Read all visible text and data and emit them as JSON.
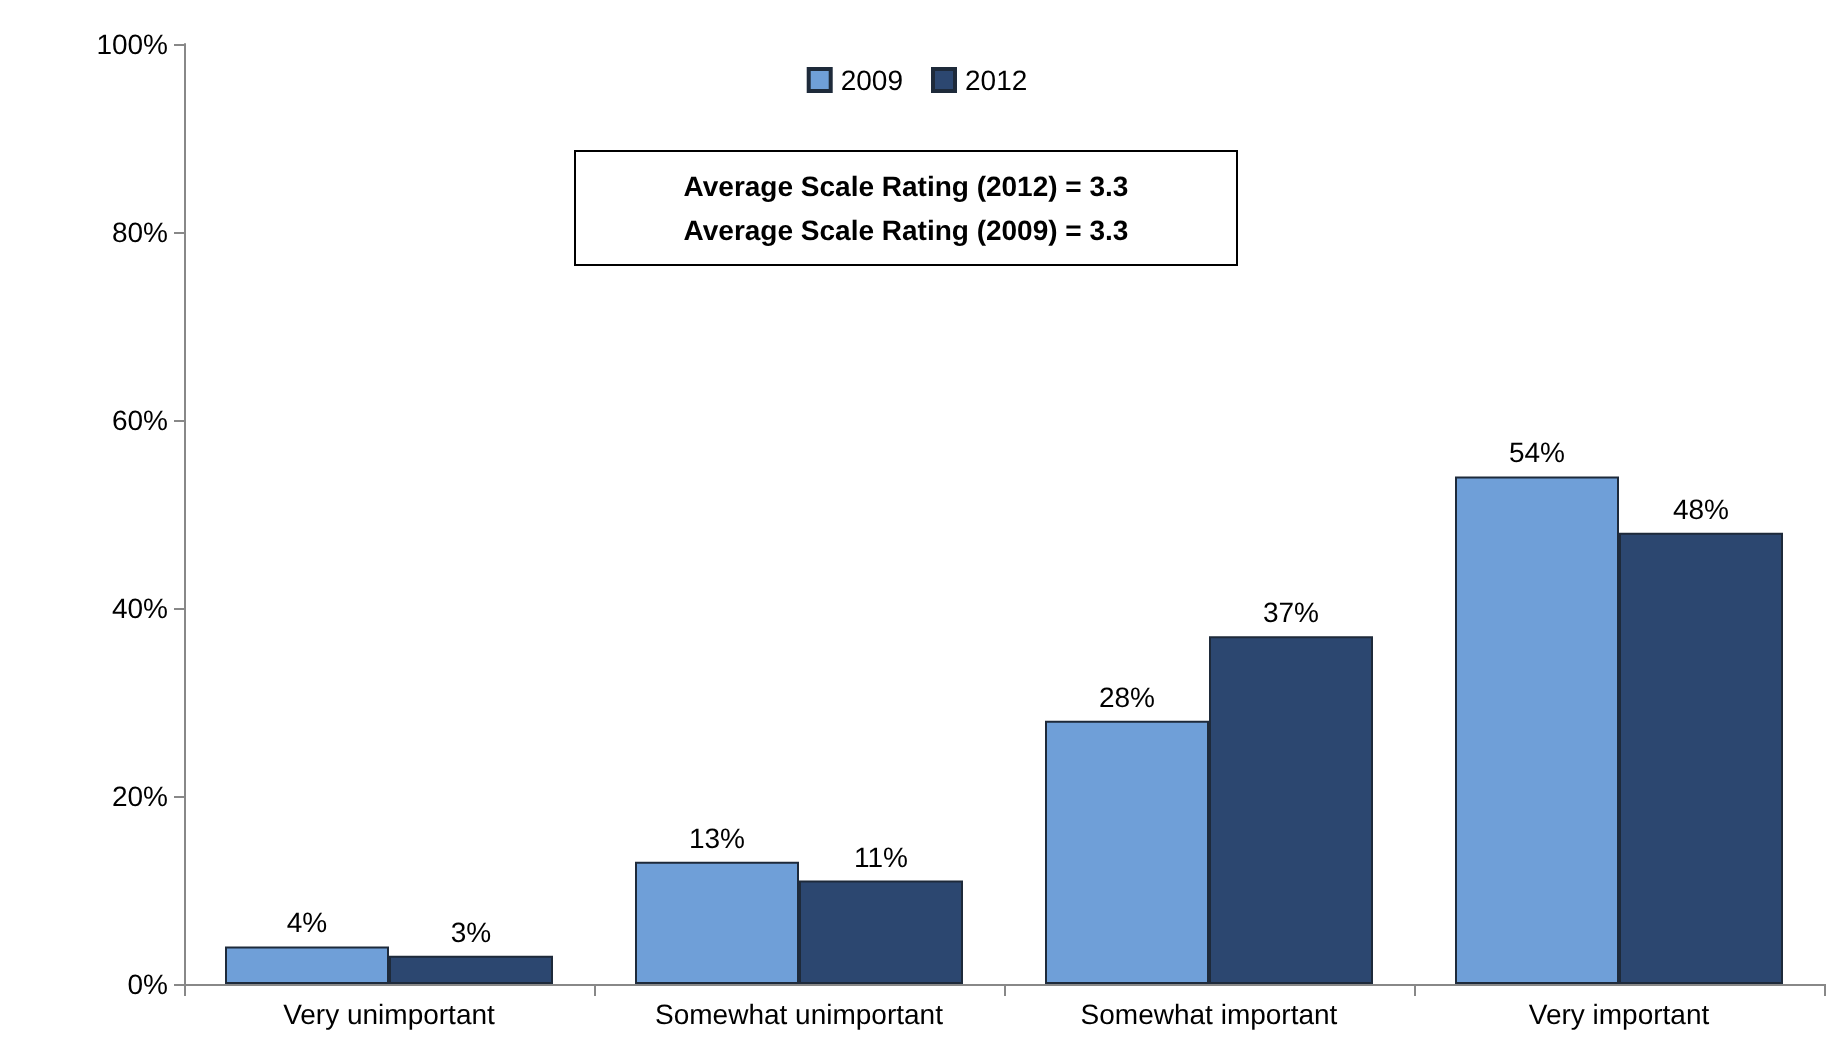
{
  "chart_data": {
    "type": "bar",
    "categories": [
      "Very unimportant",
      "Somewhat unimportant",
      "Somewhat important",
      "Very important"
    ],
    "series": [
      {
        "name": "2009",
        "color": "#6f9fd8",
        "values": [
          4,
          13,
          28,
          54
        ],
        "value_labels": [
          "4%",
          "13%",
          "28%",
          "54%"
        ]
      },
      {
        "name": "2012",
        "color": "#2c4770",
        "values": [
          3,
          11,
          37,
          48
        ],
        "value_labels": [
          "3%",
          "11%",
          "37%",
          "48%"
        ]
      }
    ],
    "ylim": [
      0,
      100
    ],
    "yticks": [
      {
        "value": 0,
        "label": "0%"
      },
      {
        "value": 20,
        "label": "20%"
      },
      {
        "value": 40,
        "label": "40%"
      },
      {
        "value": 60,
        "label": "60%"
      },
      {
        "value": 80,
        "label": "80%"
      },
      {
        "value": 100,
        "label": "100%"
      }
    ],
    "grid": false,
    "legend": "top",
    "annotations": [
      "Average Scale Rating (2012) = 3.3",
      "Average Scale Rating (2009) = 3.3"
    ]
  }
}
